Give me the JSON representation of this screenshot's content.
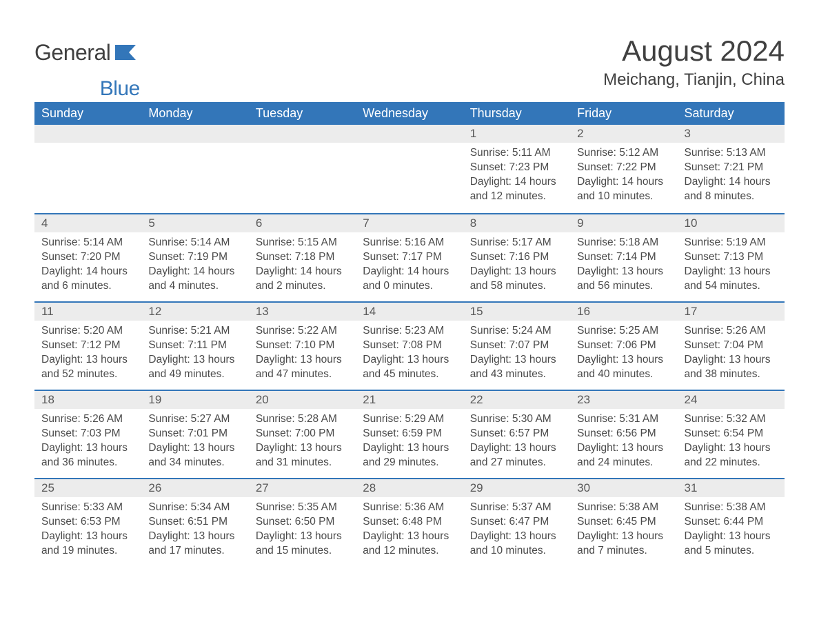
{
  "logo": {
    "word1": "General",
    "word2": "Blue"
  },
  "title": "August 2024",
  "location": "Meichang, Tianjin, China",
  "header_bg": "#3376b9",
  "header_fg": "#ffffff",
  "daynum_bg": "#ececec",
  "accent_line": "#3376b9",
  "columns": [
    "Sunday",
    "Monday",
    "Tuesday",
    "Wednesday",
    "Thursday",
    "Friday",
    "Saturday"
  ],
  "weeks": [
    [
      null,
      null,
      null,
      null,
      {
        "n": "1",
        "sunrise": "5:11 AM",
        "sunset": "7:23 PM",
        "daylight": "14 hours and 12 minutes."
      },
      {
        "n": "2",
        "sunrise": "5:12 AM",
        "sunset": "7:22 PM",
        "daylight": "14 hours and 10 minutes."
      },
      {
        "n": "3",
        "sunrise": "5:13 AM",
        "sunset": "7:21 PM",
        "daylight": "14 hours and 8 minutes."
      }
    ],
    [
      {
        "n": "4",
        "sunrise": "5:14 AM",
        "sunset": "7:20 PM",
        "daylight": "14 hours and 6 minutes."
      },
      {
        "n": "5",
        "sunrise": "5:14 AM",
        "sunset": "7:19 PM",
        "daylight": "14 hours and 4 minutes."
      },
      {
        "n": "6",
        "sunrise": "5:15 AM",
        "sunset": "7:18 PM",
        "daylight": "14 hours and 2 minutes."
      },
      {
        "n": "7",
        "sunrise": "5:16 AM",
        "sunset": "7:17 PM",
        "daylight": "14 hours and 0 minutes."
      },
      {
        "n": "8",
        "sunrise": "5:17 AM",
        "sunset": "7:16 PM",
        "daylight": "13 hours and 58 minutes."
      },
      {
        "n": "9",
        "sunrise": "5:18 AM",
        "sunset": "7:14 PM",
        "daylight": "13 hours and 56 minutes."
      },
      {
        "n": "10",
        "sunrise": "5:19 AM",
        "sunset": "7:13 PM",
        "daylight": "13 hours and 54 minutes."
      }
    ],
    [
      {
        "n": "11",
        "sunrise": "5:20 AM",
        "sunset": "7:12 PM",
        "daylight": "13 hours and 52 minutes."
      },
      {
        "n": "12",
        "sunrise": "5:21 AM",
        "sunset": "7:11 PM",
        "daylight": "13 hours and 49 minutes."
      },
      {
        "n": "13",
        "sunrise": "5:22 AM",
        "sunset": "7:10 PM",
        "daylight": "13 hours and 47 minutes."
      },
      {
        "n": "14",
        "sunrise": "5:23 AM",
        "sunset": "7:08 PM",
        "daylight": "13 hours and 45 minutes."
      },
      {
        "n": "15",
        "sunrise": "5:24 AM",
        "sunset": "7:07 PM",
        "daylight": "13 hours and 43 minutes."
      },
      {
        "n": "16",
        "sunrise": "5:25 AM",
        "sunset": "7:06 PM",
        "daylight": "13 hours and 40 minutes."
      },
      {
        "n": "17",
        "sunrise": "5:26 AM",
        "sunset": "7:04 PM",
        "daylight": "13 hours and 38 minutes."
      }
    ],
    [
      {
        "n": "18",
        "sunrise": "5:26 AM",
        "sunset": "7:03 PM",
        "daylight": "13 hours and 36 minutes."
      },
      {
        "n": "19",
        "sunrise": "5:27 AM",
        "sunset": "7:01 PM",
        "daylight": "13 hours and 34 minutes."
      },
      {
        "n": "20",
        "sunrise": "5:28 AM",
        "sunset": "7:00 PM",
        "daylight": "13 hours and 31 minutes."
      },
      {
        "n": "21",
        "sunrise": "5:29 AM",
        "sunset": "6:59 PM",
        "daylight": "13 hours and 29 minutes."
      },
      {
        "n": "22",
        "sunrise": "5:30 AM",
        "sunset": "6:57 PM",
        "daylight": "13 hours and 27 minutes."
      },
      {
        "n": "23",
        "sunrise": "5:31 AM",
        "sunset": "6:56 PM",
        "daylight": "13 hours and 24 minutes."
      },
      {
        "n": "24",
        "sunrise": "5:32 AM",
        "sunset": "6:54 PM",
        "daylight": "13 hours and 22 minutes."
      }
    ],
    [
      {
        "n": "25",
        "sunrise": "5:33 AM",
        "sunset": "6:53 PM",
        "daylight": "13 hours and 19 minutes."
      },
      {
        "n": "26",
        "sunrise": "5:34 AM",
        "sunset": "6:51 PM",
        "daylight": "13 hours and 17 minutes."
      },
      {
        "n": "27",
        "sunrise": "5:35 AM",
        "sunset": "6:50 PM",
        "daylight": "13 hours and 15 minutes."
      },
      {
        "n": "28",
        "sunrise": "5:36 AM",
        "sunset": "6:48 PM",
        "daylight": "13 hours and 12 minutes."
      },
      {
        "n": "29",
        "sunrise": "5:37 AM",
        "sunset": "6:47 PM",
        "daylight": "13 hours and 10 minutes."
      },
      {
        "n": "30",
        "sunrise": "5:38 AM",
        "sunset": "6:45 PM",
        "daylight": "13 hours and 7 minutes."
      },
      {
        "n": "31",
        "sunrise": "5:38 AM",
        "sunset": "6:44 PM",
        "daylight": "13 hours and 5 minutes."
      }
    ]
  ],
  "labels": {
    "sunrise": "Sunrise: ",
    "sunset": "Sunset: ",
    "daylight": "Daylight: "
  }
}
